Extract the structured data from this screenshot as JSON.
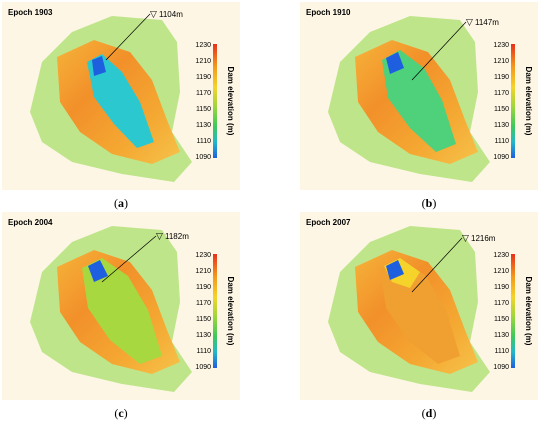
{
  "colorbar": {
    "ticks": [
      "1230",
      "1210",
      "1190",
      "1170",
      "1150",
      "1130",
      "1110",
      "1090"
    ],
    "label": "Dam elevation (m)",
    "colors": [
      "#e8301c",
      "#f39a1c",
      "#f5d32a",
      "#9ed63a",
      "#3ec95a",
      "#22b8c8",
      "#1e5fe0"
    ]
  },
  "panels": [
    {
      "epoch": "Epoch 1903",
      "water_level": "1104m",
      "caption": "a",
      "water_fill": 0.08
    },
    {
      "epoch": "Epoch 1910",
      "water_level": "1147m",
      "caption": "b",
      "water_fill": 0.4
    },
    {
      "epoch": "Epoch 2004",
      "water_level": "1182m",
      "caption": "c",
      "water_fill": 0.66
    },
    {
      "epoch": "Epoch 2007",
      "water_level": "1216m",
      "caption": "d",
      "water_fill": 0.9
    }
  ]
}
